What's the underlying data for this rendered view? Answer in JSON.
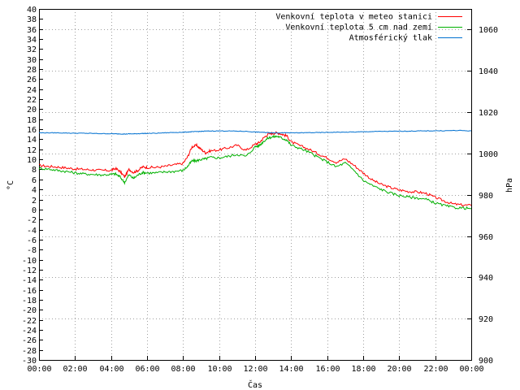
{
  "chart_data": {
    "type": "line",
    "title": "",
    "xlabel": "Čas",
    "ylabel_left": "°C",
    "ylabel_right": "hPa",
    "ylim_left": [
      -30,
      40
    ],
    "ylim_right": [
      900,
      1070
    ],
    "y_ticks_left": [
      40,
      38,
      36,
      34,
      32,
      30,
      28,
      26,
      24,
      22,
      20,
      18,
      16,
      14,
      12,
      10,
      8,
      6,
      4,
      2,
      0,
      -2,
      -4,
      -6,
      -8,
      -10,
      -12,
      -14,
      -16,
      -18,
      -20,
      -22,
      -24,
      -26,
      -28,
      -30
    ],
    "y_ticks_right": [
      1060,
      1040,
      1020,
      1000,
      980,
      960,
      940,
      920,
      900
    ],
    "x_ticks": [
      "00:00",
      "02:00",
      "04:00",
      "06:00",
      "08:00",
      "10:00",
      "12:00",
      "14:00",
      "16:00",
      "18:00",
      "20:00",
      "22:00",
      "00:00"
    ],
    "x_hours": [
      0,
      0.5,
      1,
      1.5,
      2,
      2.5,
      3,
      3.5,
      4,
      4.25,
      4.5,
      4.75,
      5,
      5.25,
      5.5,
      5.75,
      6,
      6.5,
      7,
      7.5,
      8,
      8.25,
      8.5,
      8.75,
      9,
      9.25,
      9.5,
      10,
      10.5,
      11,
      11.5,
      12,
      12.25,
      12.5,
      12.75,
      13,
      13.25,
      13.5,
      13.75,
      14,
      14.5,
      15,
      15.5,
      16,
      16.5,
      17,
      17.5,
      18,
      18.5,
      19,
      19.5,
      20,
      20.5,
      21,
      21.5,
      22,
      22.5,
      23,
      23.5,
      24
    ],
    "grid": true,
    "legend_position": "top-right",
    "series": [
      {
        "name": "Venkovní teplota v meteo stanici",
        "axis": "left",
        "color": "#ff0000",
        "values": [
          8.8,
          8.6,
          8.5,
          8.3,
          8.1,
          8.0,
          7.9,
          7.8,
          7.8,
          8.2,
          7.6,
          6.5,
          8.0,
          7.4,
          7.8,
          8.5,
          8.4,
          8.4,
          8.6,
          8.9,
          9.2,
          10.5,
          12.5,
          12.8,
          12.0,
          11.3,
          11.7,
          11.9,
          12.3,
          12.8,
          11.8,
          13.0,
          13.4,
          14.4,
          15.1,
          15.2,
          15.3,
          15.0,
          14.7,
          13.5,
          12.7,
          12.0,
          11.1,
          10.3,
          9.4,
          10.1,
          8.8,
          7.3,
          5.9,
          5.0,
          4.4,
          3.9,
          3.6,
          3.5,
          3.2,
          2.4,
          1.7,
          1.1,
          0.9,
          0.8
        ]
      },
      {
        "name": "Venkovní teplota 5 cm nad zemí",
        "axis": "left",
        "color": "#00b000",
        "values": [
          8.2,
          8.1,
          7.8,
          7.6,
          7.3,
          7.1,
          7.0,
          6.9,
          7.0,
          7.1,
          6.5,
          5.4,
          6.9,
          6.2,
          6.9,
          7.4,
          7.3,
          7.3,
          7.5,
          7.6,
          7.8,
          8.6,
          9.7,
          9.7,
          10.0,
          10.1,
          10.4,
          10.3,
          10.6,
          11.0,
          10.6,
          12.5,
          12.8,
          13.7,
          14.3,
          14.5,
          14.6,
          14.2,
          13.9,
          12.8,
          12.2,
          11.4,
          10.4,
          9.5,
          8.5,
          9.3,
          7.8,
          5.8,
          4.8,
          4.0,
          3.3,
          2.8,
          2.5,
          2.3,
          2.0,
          1.3,
          0.8,
          0.4,
          0.3,
          0.2
        ]
      },
      {
        "name": "Atmosférický tlak",
        "axis": "right",
        "color": "#0070d0",
        "values": [
          1010.0,
          1010.0,
          1010.0,
          1009.9,
          1009.8,
          1009.8,
          1009.7,
          1009.6,
          1009.6,
          1009.5,
          1009.5,
          1009.4,
          1009.5,
          1009.5,
          1009.6,
          1009.7,
          1009.7,
          1009.8,
          1010.0,
          1010.2,
          1010.3,
          1010.4,
          1010.5,
          1010.6,
          1010.7,
          1010.8,
          1010.9,
          1010.9,
          1010.9,
          1010.8,
          1010.7,
          1010.4,
          1010.3,
          1010.2,
          1010.1,
          1010.0,
          1010.0,
          1010.0,
          1010.0,
          1010.0,
          1010.0,
          1010.1,
          1010.1,
          1010.2,
          1010.3,
          1010.3,
          1010.4,
          1010.5,
          1010.6,
          1010.7,
          1010.7,
          1010.8,
          1010.8,
          1010.9,
          1010.9,
          1011.0,
          1011.0,
          1011.1,
          1011.1,
          1010.9
        ]
      }
    ]
  }
}
